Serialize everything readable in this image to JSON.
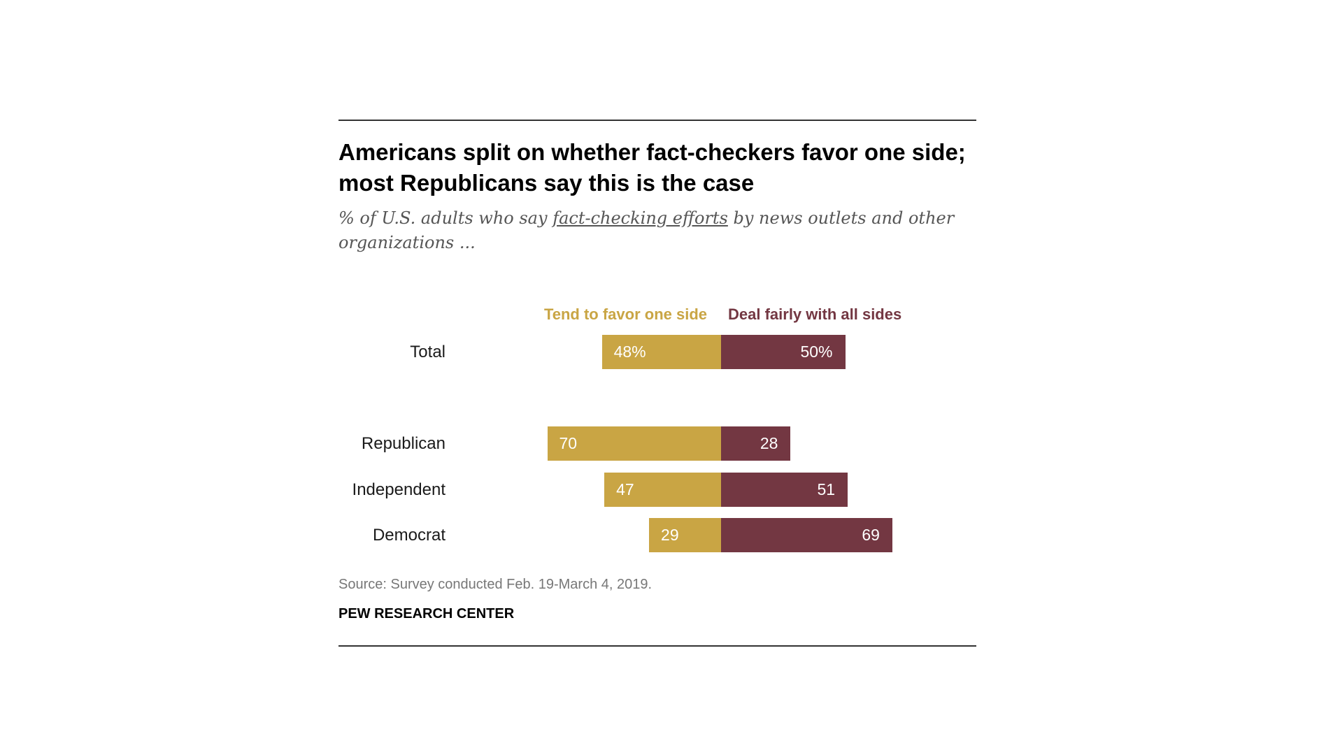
{
  "title": "Americans split on whether fact-checkers favor one side; most Republicans say this is the case",
  "subtitle": {
    "before": "% of U.S. adults who say ",
    "underlined": "fact-checking efforts",
    "after": " by news outlets and other organizations ..."
  },
  "source": "Source: Survey conducted Feb. 19-March 4, 2019.",
  "organization": "PEW RESEARCH CENTER",
  "colors": {
    "favor_one_side": "#C9A544",
    "deal_fairly": "#733742"
  },
  "chart_data": {
    "type": "bar",
    "orientation": "diverging-horizontal",
    "title": "Americans split on whether fact-checkers favor one side; most Republicans say this is the case",
    "categories": [
      "Total",
      "Republican",
      "Independent",
      "Democrat"
    ],
    "series": [
      {
        "name": "Tend to favor one side",
        "values": [
          48,
          70,
          47,
          29
        ],
        "labels": [
          "48%",
          "70",
          "47",
          "29"
        ],
        "color": "#C9A544"
      },
      {
        "name": "Deal fairly with all sides",
        "values": [
          50,
          28,
          51,
          69
        ],
        "labels": [
          "50%",
          "28",
          "51",
          "69"
        ],
        "color": "#733742"
      }
    ],
    "unit": "%",
    "grid": false,
    "legend": "top"
  }
}
